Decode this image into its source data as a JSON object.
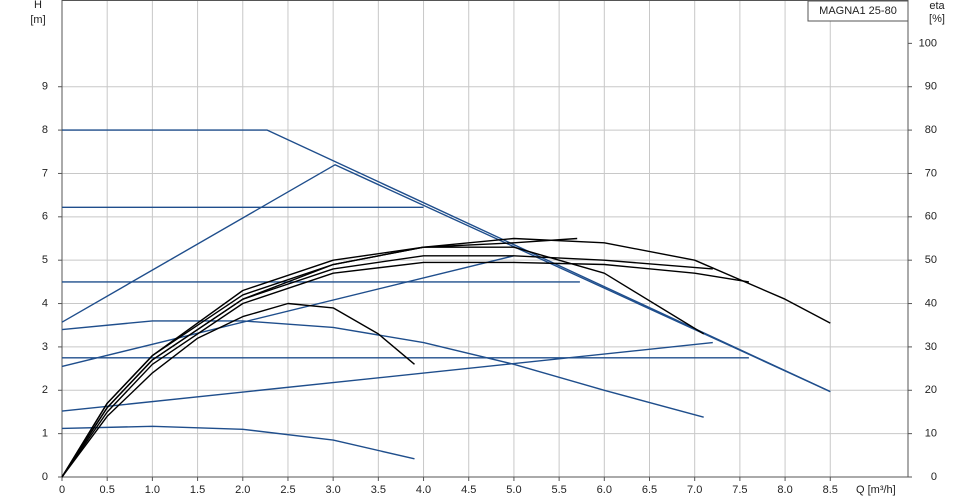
{
  "chart_data": {
    "type": "line",
    "title": "MAGNA1 25-80",
    "y_label": "H",
    "y_unit": "[m]",
    "y2_label": "eta",
    "y2_unit": "[%]",
    "x_label": "Q [m³/h]",
    "xlim": [
      0,
      9.36
    ],
    "ylim": [
      0,
      11
    ],
    "y2lim": [
      0,
      110
    ],
    "xticks": [
      0,
      0.5,
      {
        "value": 1,
        "label": "1.0"
      },
      1.5,
      {
        "value": 2,
        "label": "2.0"
      },
      2.5,
      {
        "value": 3,
        "label": "3.0"
      },
      3.5,
      {
        "value": 4,
        "label": "4.0"
      },
      4.5,
      {
        "value": 5,
        "label": "5.0"
      },
      5.5,
      {
        "value": 6,
        "label": "6.0"
      },
      6.5,
      {
        "value": 7,
        "label": "7.0"
      },
      7.5,
      {
        "value": 8,
        "label": "8.0"
      },
      8.5
    ],
    "yticks": [
      0,
      1,
      2,
      3,
      4,
      5,
      6,
      7,
      8,
      9
    ],
    "y2ticks": [
      0,
      10,
      20,
      30,
      40,
      50,
      60,
      70,
      80,
      90,
      100
    ],
    "grid": true,
    "series": [
      {
        "color": "#1f4e8c",
        "x": [
          0,
          2.27,
          8.5
        ],
        "values": [
          8,
          8,
          1.97
        ]
      },
      {
        "color": "#1f4e8c",
        "x": [
          0,
          3.02,
          8.5
        ],
        "values": [
          3.57,
          7.2,
          1.97
        ]
      },
      {
        "color": "#1f4e8c",
        "x": [
          0,
          4.0
        ],
        "values": [
          6.22,
          6.22
        ]
      },
      {
        "color": "#1f4e8c",
        "x": [
          0,
          5.73
        ],
        "values": [
          4.5,
          4.5
        ]
      },
      {
        "color": "#1f4e8c",
        "x": [
          0,
          7.6
        ],
        "values": [
          2.75,
          2.75
        ]
      },
      {
        "color": "#1f4e8c",
        "x": [
          0,
          5.0
        ],
        "values": [
          2.55,
          5.1
        ]
      },
      {
        "color": "#1f4e8c",
        "x": [
          0,
          7.2
        ],
        "values": [
          1.52,
          3.1
        ]
      },
      {
        "color": "#1f4e8c",
        "x": [
          0,
          1,
          2,
          3,
          4,
          5,
          6,
          7.1
        ],
        "values": [
          3.4,
          3.6,
          3.6,
          3.45,
          3.1,
          2.6,
          2.0,
          1.38
        ]
      },
      {
        "color": "#1f4e8c",
        "x": [
          0,
          1,
          2,
          3,
          3.9
        ],
        "values": [
          1.12,
          1.17,
          1.1,
          0.85,
          0.42
        ]
      },
      {
        "color": "#000000",
        "axis": "y2",
        "x": [
          0,
          0.5,
          1,
          2,
          3,
          4,
          5,
          6,
          7,
          8,
          8.5
        ],
        "values": [
          0,
          16,
          27,
          41,
          49,
          53,
          55,
          54,
          50,
          41,
          35.5
        ]
      },
      {
        "color": "#000000",
        "axis": "y2",
        "x": [
          0,
          0.5,
          1,
          2,
          3,
          4,
          5,
          6,
          7.1
        ],
        "values": [
          0,
          17,
          28,
          43,
          50,
          53,
          53,
          47,
          33
        ]
      },
      {
        "color": "#000000",
        "axis": "y2",
        "x": [
          0,
          0.5,
          1,
          1.5,
          2,
          2.5,
          3,
          3.5,
          3.9
        ],
        "values": [
          0,
          14,
          24,
          32,
          37,
          40,
          39,
          33,
          26
        ]
      },
      {
        "color": "#000000",
        "axis": "y2",
        "x": [
          0,
          0.5,
          1,
          2,
          3,
          4,
          5,
          6,
          7,
          7.6
        ],
        "values": [
          0,
          15,
          26,
          40,
          47,
          49.5,
          49.5,
          49,
          47,
          45
        ]
      },
      {
        "color": "#000000",
        "axis": "y2",
        "x": [
          0,
          0.5,
          1,
          2,
          3,
          4,
          5,
          5.7
        ],
        "values": [
          0,
          17,
          28,
          42,
          49,
          53,
          54,
          55
        ]
      },
      {
        "color": "#000000",
        "axis": "y2",
        "x": [
          0,
          0.5,
          1,
          2,
          3,
          4,
          5,
          6,
          7.2
        ],
        "values": [
          0,
          16,
          27,
          41,
          48,
          51,
          51,
          50,
          48
        ]
      }
    ]
  }
}
